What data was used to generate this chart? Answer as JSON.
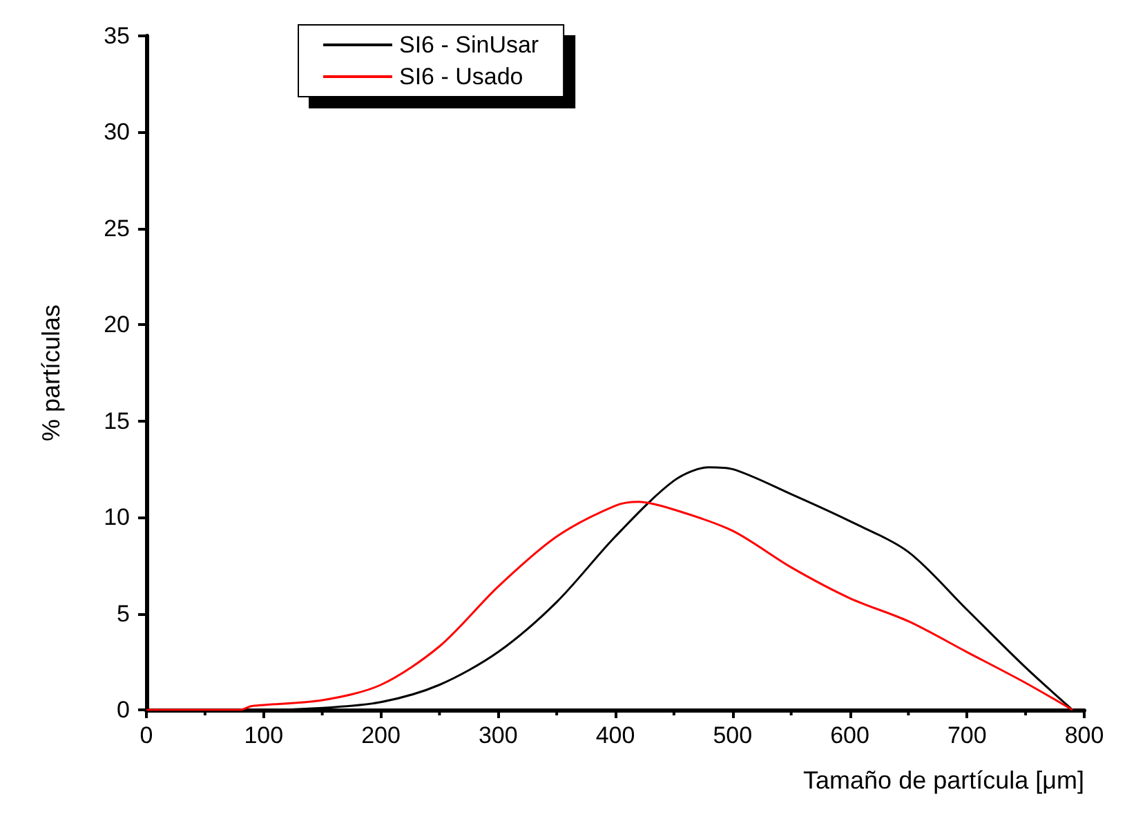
{
  "chart_data": {
    "type": "line",
    "xlabel": "Tamaño de partícula [μm]",
    "ylabel": "% partículas",
    "xlim": [
      0,
      800
    ],
    "xticks": [
      0,
      100,
      200,
      300,
      400,
      500,
      600,
      700,
      800
    ],
    "ylim": [
      0,
      35
    ],
    "yticks": [
      0,
      5,
      10,
      15,
      20,
      25,
      30,
      35
    ],
    "grid": false,
    "legend": "top",
    "marker": "none",
    "line_style": "solid",
    "series": [
      {
        "name": "SI6 - SinUsar",
        "color": "#000000",
        "x": [
          0,
          100,
          150,
          200,
          250,
          300,
          350,
          400,
          450,
          480,
          500,
          550,
          600,
          650,
          700,
          750,
          790
        ],
        "values": [
          0,
          0,
          0.1,
          0.4,
          1.3,
          3.0,
          5.6,
          9.0,
          11.9,
          12.6,
          12.5,
          11.2,
          9.8,
          8.2,
          5.2,
          2.2,
          0
        ]
      },
      {
        "name": "SI6 - Usado",
        "color": "#ff0000",
        "x": [
          0,
          80,
          90,
          150,
          200,
          250,
          300,
          350,
          400,
          420,
          450,
          500,
          550,
          600,
          650,
          700,
          750,
          790
        ],
        "values": [
          0,
          0,
          0.2,
          0.5,
          1.3,
          3.3,
          6.4,
          9.0,
          10.6,
          10.8,
          10.4,
          9.3,
          7.4,
          5.8,
          4.6,
          3.0,
          1.4,
          0
        ]
      }
    ]
  }
}
